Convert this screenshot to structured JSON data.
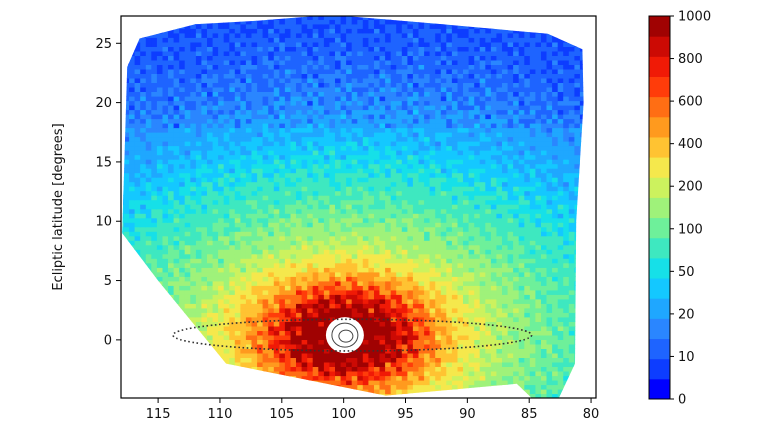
{
  "chart_data": {
    "type": "heatmap",
    "title": "",
    "xlabel": "",
    "ylabel": "Ecliptic latitude [degrees]",
    "x_axis": {
      "ticks": [
        115,
        110,
        105,
        100,
        95,
        90,
        85,
        80
      ],
      "tick_labels": [
        "115",
        "110",
        "105",
        "100",
        "95",
        "90",
        "85",
        "80"
      ],
      "range": [
        118,
        79.6
      ],
      "reversed": true
    },
    "y_axis": {
      "ticks": [
        0,
        5,
        10,
        15,
        20,
        25
      ],
      "tick_labels": [
        "0",
        "5",
        "10",
        "15",
        "20",
        "25"
      ],
      "range": [
        -4.9,
        27.3
      ]
    },
    "grid": false,
    "peak": {
      "x": 99.9,
      "y": 0.4
    },
    "overlay": {
      "type": "dotted-ellipse",
      "center_x": 99.3,
      "center_y": 0.4,
      "half_width_deg": 14.5,
      "half_height_deg": 1.0
    },
    "colorbar": {
      "position": "right",
      "tick_values": [
        0,
        10,
        20,
        50,
        100,
        200,
        400,
        600,
        800,
        1000
      ],
      "tick_labels": [
        "0",
        "10",
        "20",
        "50",
        "100",
        "200",
        "400",
        "600",
        "800",
        "1000"
      ],
      "levels": [
        0,
        5,
        10,
        15,
        20,
        30,
        40,
        50,
        75,
        100,
        150,
        200,
        300,
        400,
        500,
        600,
        700,
        800,
        900,
        1000
      ],
      "colors": [
        "#0000ff",
        "#0d3dff",
        "#1e64ff",
        "#2a86ff",
        "#1fa7ff",
        "#14c8ff",
        "#16e0e8",
        "#3ee8c0",
        "#6ef09a",
        "#9ff27a",
        "#ccf25e",
        "#f5e84c",
        "#ffc332",
        "#ff9a1e",
        "#ff6e14",
        "#ff3c0a",
        "#f01a06",
        "#cc0a04",
        "#a00202"
      ]
    },
    "mask_polygon": [
      [
        109.5,
        -2.0
      ],
      [
        96.6,
        -4.7
      ],
      [
        86.0,
        -3.7
      ],
      [
        84.8,
        -4.9
      ],
      [
        82.6,
        -4.9
      ],
      [
        81.3,
        -2.0
      ],
      [
        81.2,
        10.0
      ],
      [
        80.6,
        20.0
      ],
      [
        80.7,
        24.5
      ],
      [
        83.5,
        25.8
      ],
      [
        92.0,
        26.6
      ],
      [
        101.0,
        27.4
      ],
      [
        107.0,
        26.9
      ],
      [
        112.0,
        26.6
      ],
      [
        116.5,
        25.4
      ],
      [
        117.5,
        23.0
      ],
      [
        117.9,
        9.0
      ],
      [
        115.0,
        5.0
      ]
    ]
  }
}
